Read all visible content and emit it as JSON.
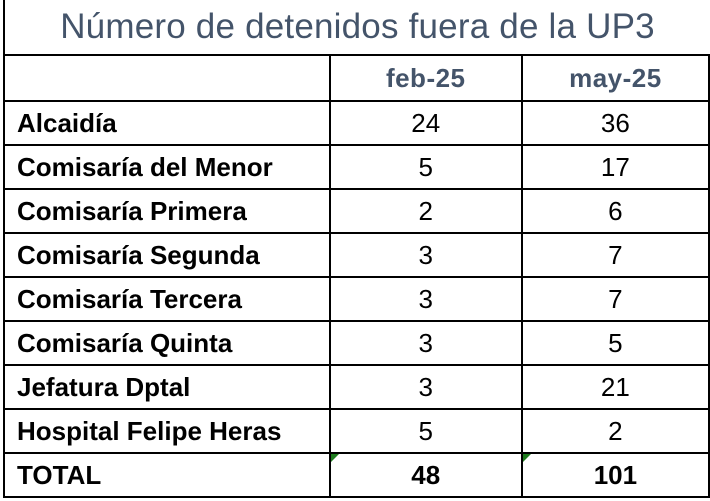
{
  "title": "Número de detenidos fuera de la UP3",
  "columns": [
    "feb-25",
    "may-25"
  ],
  "rows": [
    {
      "label": "Alcaidía",
      "feb": "24",
      "may": "36"
    },
    {
      "label": "Comisaría del Menor",
      "feb": "5",
      "may": "17"
    },
    {
      "label": "Comisaría Primera",
      "feb": "2",
      "may": "6"
    },
    {
      "label": "Comisaría Segunda",
      "feb": "3",
      "may": "7"
    },
    {
      "label": "Comisaría Tercera",
      "feb": "3",
      "may": "7"
    },
    {
      "label": "Comisaría Quinta",
      "feb": "3",
      "may": "5"
    },
    {
      "label": "Jefatura Dptal",
      "feb": "3",
      "may": "21"
    },
    {
      "label": "Hospital Felipe Heras",
      "feb": "5",
      "may": "2"
    }
  ],
  "total": {
    "label": "TOTAL",
    "feb": "48",
    "may": "101"
  },
  "colors": {
    "header_text": "#44546a",
    "border": "#000000",
    "formula_marker": "#1e7b1e"
  }
}
